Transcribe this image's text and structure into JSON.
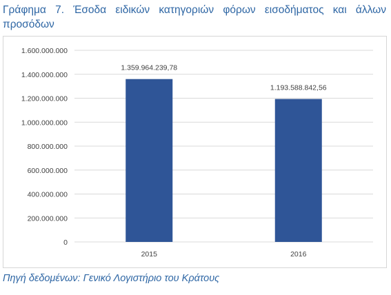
{
  "figure": {
    "title": "Γράφημα 7. Έσοδα ειδικών κατηγοριών φόρων εισοδήματος και άλλων προσόδων",
    "source": "Πηγή δεδομένων: Γενικό Λογιστήριο του Κράτους"
  },
  "colors": {
    "bar": "#2f5597",
    "grid": "#d9d9d9",
    "text": "#404040",
    "title": "#2e66a4"
  },
  "chart_data": {
    "type": "bar",
    "categories": [
      "2015",
      "2016"
    ],
    "values": [
      1359964239.78,
      1193588842.56
    ],
    "data_labels": [
      "1.359.964.239,78",
      "1.193.588.842,56"
    ],
    "y_ticks": [
      0,
      200000000,
      400000000,
      600000000,
      800000000,
      1000000000,
      1200000000,
      1400000000,
      1600000000
    ],
    "y_tick_labels": [
      "0",
      "200.000.000",
      "400.000.000",
      "600.000.000",
      "800.000.000",
      "1.000.000.000",
      "1.200.000.000",
      "1.400.000.000",
      "1.600.000.000"
    ],
    "ylim": [
      0,
      1600000000
    ],
    "grid": true,
    "legend": "none"
  }
}
